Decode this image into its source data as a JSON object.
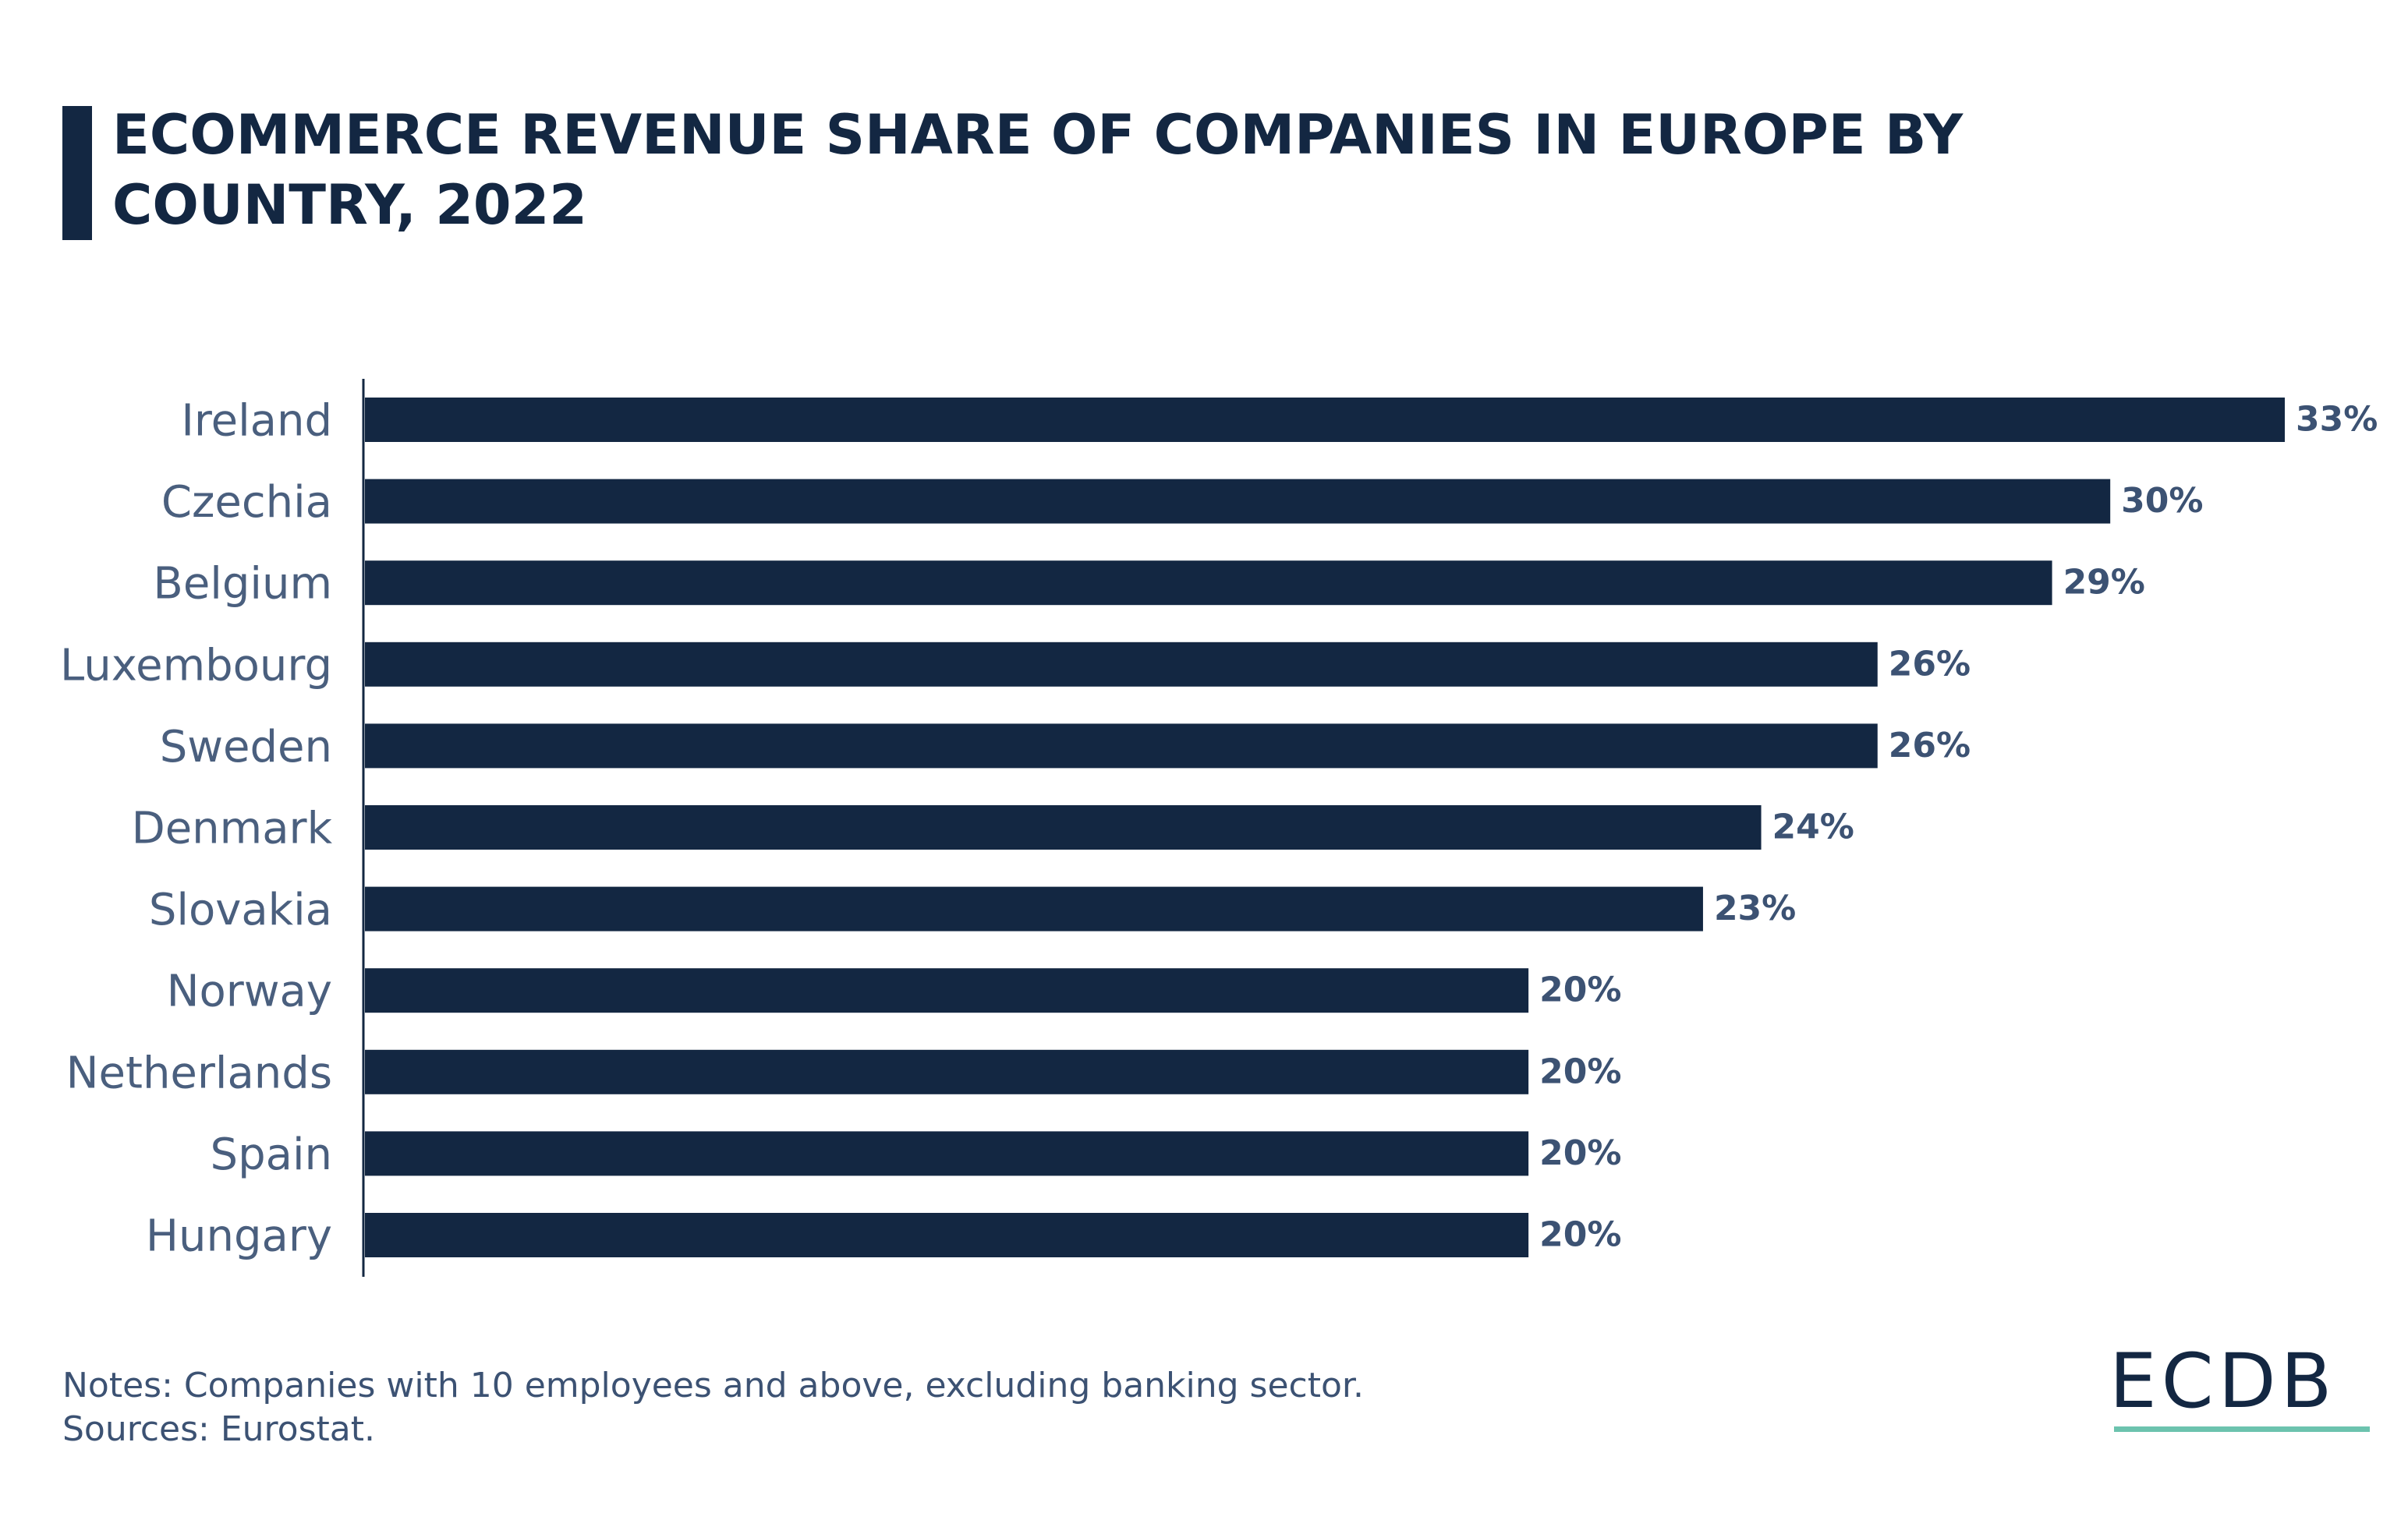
{
  "title": "ECOMMERCE REVENUE SHARE OF COMPANIES IN EUROPE BY COUNTRY, 2022",
  "notes": [
    "Notes: Companies with 10 employees and above, excluding banking sector.",
    "Sources: Eurostat."
  ],
  "logo": {
    "text": "ECDB",
    "accent_color": "#6cc3ae"
  },
  "colors": {
    "bar": "#132742",
    "title": "#132742",
    "labels": "#4a5f7e"
  },
  "chart_data": {
    "type": "bar",
    "orientation": "horizontal",
    "title": "ECOMMERCE REVENUE SHARE OF COMPANIES IN EUROPE BY COUNTRY, 2022",
    "categories": [
      "Ireland",
      "Czechia",
      "Belgium",
      "Luxembourg",
      "Sweden",
      "Denmark",
      "Slovakia",
      "Norway",
      "Netherlands",
      "Spain",
      "Hungary"
    ],
    "values": [
      33,
      30,
      29,
      26,
      26,
      24,
      23,
      20,
      20,
      20,
      20
    ],
    "data_labels": [
      "33%",
      "30%",
      "29%",
      "26%",
      "26%",
      "24%",
      "23%",
      "20%",
      "20%",
      "20%",
      "20%"
    ],
    "unit": "%",
    "xlim": [
      0,
      33
    ],
    "grid": false,
    "legend": "none"
  }
}
